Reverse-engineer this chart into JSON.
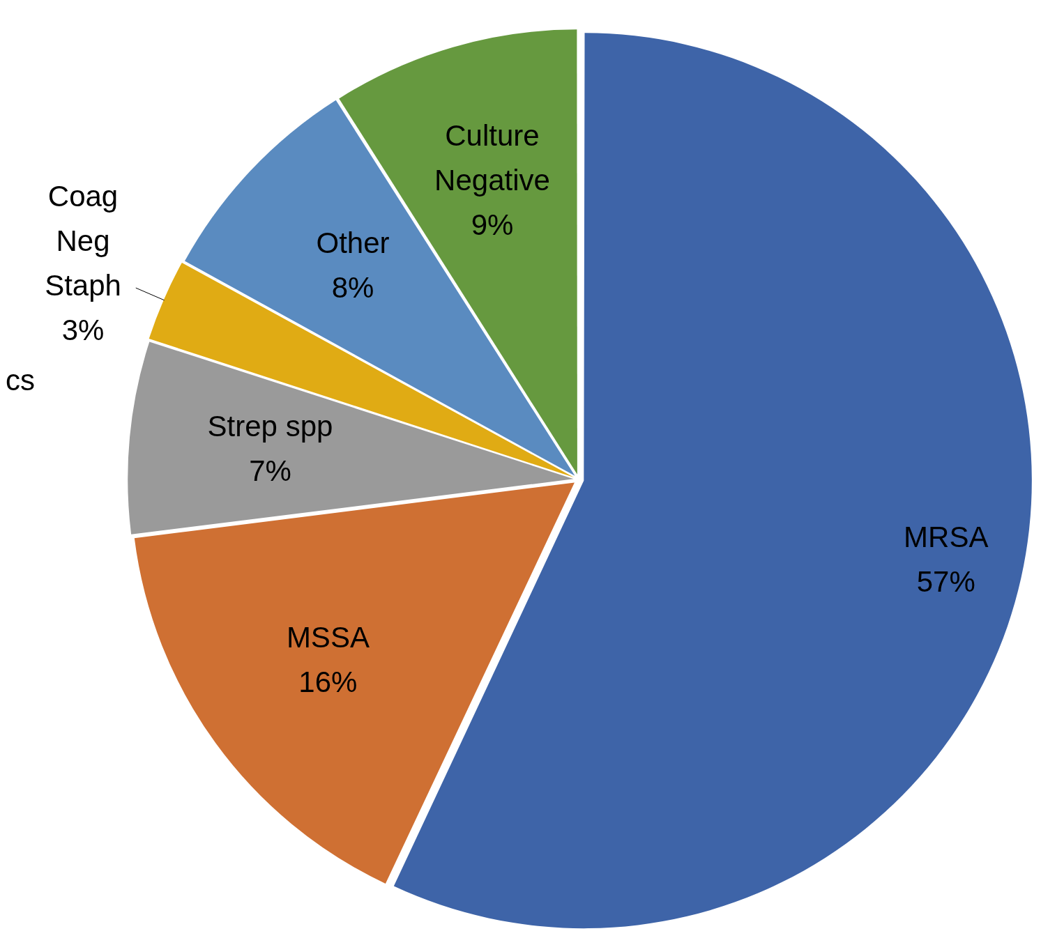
{
  "chart_data": {
    "type": "pie",
    "categories": [
      "MRSA",
      "MSSA",
      "Strep spp",
      "Coag Neg Staph",
      "Other",
      "Culture Negative"
    ],
    "values": [
      57,
      16,
      7,
      3,
      8,
      9
    ],
    "colors": [
      "#3e64a8",
      "#cf7033",
      "#9a9a9a",
      "#e0ab14",
      "#5a8bc0",
      "#66993f"
    ],
    "value_labels": [
      "57%",
      "16%",
      "7%",
      "3%",
      "8%",
      "9%"
    ],
    "legend": false,
    "annotations": [
      "cs"
    ]
  }
}
